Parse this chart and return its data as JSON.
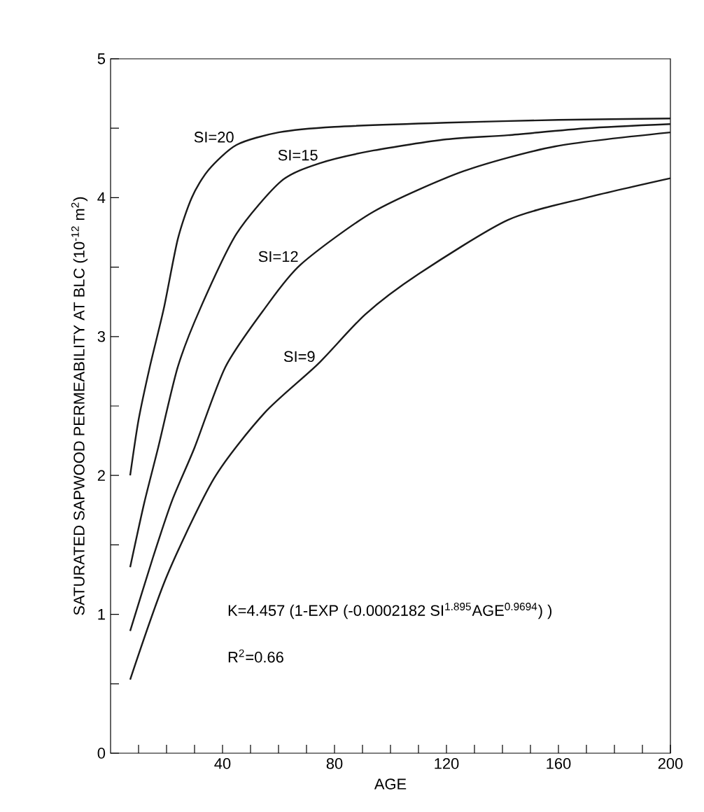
{
  "chart_data": {
    "type": "line",
    "xlabel": "AGE",
    "ylabel": "SATURATED SAPWOOD PERMEABILITY AT BLC (10$^{-12}$ m$^{2}$)",
    "xlim": [
      0,
      200
    ],
    "ylim": [
      0,
      5
    ],
    "xticks": [
      {
        "value": 10,
        "label": null
      },
      {
        "value": 20,
        "label": null
      },
      {
        "value": 30,
        "label": null
      },
      40,
      {
        "value": 50,
        "label": null
      },
      {
        "value": 60,
        "label": null
      },
      {
        "value": 70,
        "label": null
      },
      80,
      {
        "value": 90,
        "label": null
      },
      {
        "value": 100,
        "label": null
      },
      {
        "value": 110,
        "label": null
      },
      120,
      {
        "value": 130,
        "label": null
      },
      {
        "value": 140,
        "label": null
      },
      {
        "value": 150,
        "label": null
      },
      160,
      {
        "value": 170,
        "label": null
      },
      {
        "value": 180,
        "label": null
      },
      {
        "value": 190,
        "label": null
      },
      200
    ],
    "yticks": [
      0,
      {
        "value": 0.5,
        "label": null
      },
      1,
      {
        "value": 1.5,
        "label": null
      },
      2,
      {
        "value": 2.5,
        "label": null
      },
      3,
      {
        "value": 3.5,
        "label": null
      },
      4,
      {
        "value": 4.5,
        "label": null
      },
      5
    ],
    "series": [
      {
        "name": "SI=20",
        "color": "#1a1a1a",
        "x": [
          7,
          10,
          14,
          19,
          24,
          29,
          35,
          45,
          60,
          80,
          120,
          160,
          200
        ],
        "values": [
          2.0,
          2.4,
          2.78,
          3.2,
          3.7,
          4.0,
          4.2,
          4.38,
          4.47,
          4.51,
          4.54,
          4.56,
          4.57
        ]
      },
      {
        "name": "SI=15",
        "color": "#1a1a1a",
        "x": [
          7,
          12,
          17,
          24,
          32,
          45,
          61,
          75,
          94,
          120,
          142,
          170,
          200
        ],
        "values": [
          1.34,
          1.8,
          2.2,
          2.78,
          3.2,
          3.74,
          4.12,
          4.25,
          4.34,
          4.42,
          4.45,
          4.5,
          4.53
        ]
      },
      {
        "name": "SI=12",
        "color": "#1a1a1a",
        "x": [
          7,
          15,
          22,
          30,
          41,
          55,
          68,
          94,
          126,
          159,
          200
        ],
        "values": [
          0.88,
          1.4,
          1.82,
          2.2,
          2.78,
          3.2,
          3.52,
          3.9,
          4.19,
          4.37,
          4.47
        ]
      },
      {
        "name": "SI=9",
        "color": "#1a1a1a",
        "x": [
          7,
          20,
          37,
          55,
          74,
          91,
          110,
          142,
          170,
          200
        ],
        "values": [
          0.53,
          1.27,
          1.98,
          2.45,
          2.8,
          3.16,
          3.45,
          3.84,
          4.0,
          4.14
        ]
      }
    ],
    "annotations": [
      "K=4.457 (1-EXP (-0.0002182 SI$^{1.895}$AGE$^{0.9694}$) )",
      "R$^{2}$=0.66"
    ]
  }
}
